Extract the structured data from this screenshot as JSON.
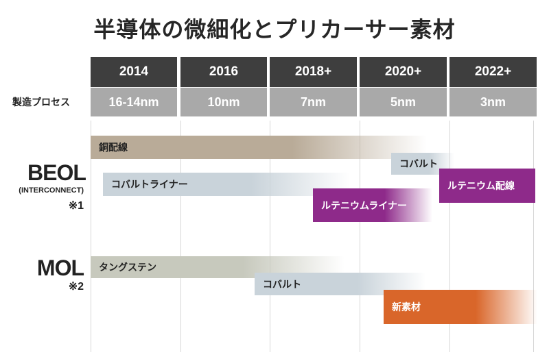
{
  "title": "半導体の微細化とプリカーサー素材",
  "process_label": "製造プロセス",
  "timeline": [
    {
      "year": "2014",
      "node": "16-14nm"
    },
    {
      "year": "2016",
      "node": "10nm"
    },
    {
      "year": "2018+",
      "node": "7nm"
    },
    {
      "year": "2020+",
      "node": "5nm"
    },
    {
      "year": "2022+",
      "node": "3nm"
    }
  ],
  "rows": {
    "beol": {
      "label": "BEOL",
      "sublabel": "(INTERCONNECT)",
      "note": "※1"
    },
    "mol": {
      "label": "MOL",
      "note": "※2"
    }
  },
  "bars": [
    {
      "label": "銅配線",
      "color": "#b9ab98",
      "fade": true,
      "text_color": "#222222"
    },
    {
      "label": "コバルト",
      "color": "#c9d3da",
      "fade": true,
      "text_color": "#222222"
    },
    {
      "label": "コバルトライナー",
      "color": "#c9d3da",
      "fade": true,
      "text_color": "#222222"
    },
    {
      "label": "ルテニウム配線",
      "color": "#8e2a8a",
      "fade": false,
      "text_color": "#ffffff"
    },
    {
      "label": "ルテニウムライナー",
      "color": "#8e2a8a",
      "fade": true,
      "text_color": "#ffffff"
    },
    {
      "label": "タングステン",
      "color": "#c7c9bd",
      "fade": true,
      "text_color": "#222222"
    },
    {
      "label": "コバルト",
      "color": "#c9d3da",
      "fade": true,
      "text_color": "#222222"
    },
    {
      "label": "新素材",
      "color": "#d9662a",
      "fade": true,
      "text_color": "#ffffff"
    }
  ]
}
